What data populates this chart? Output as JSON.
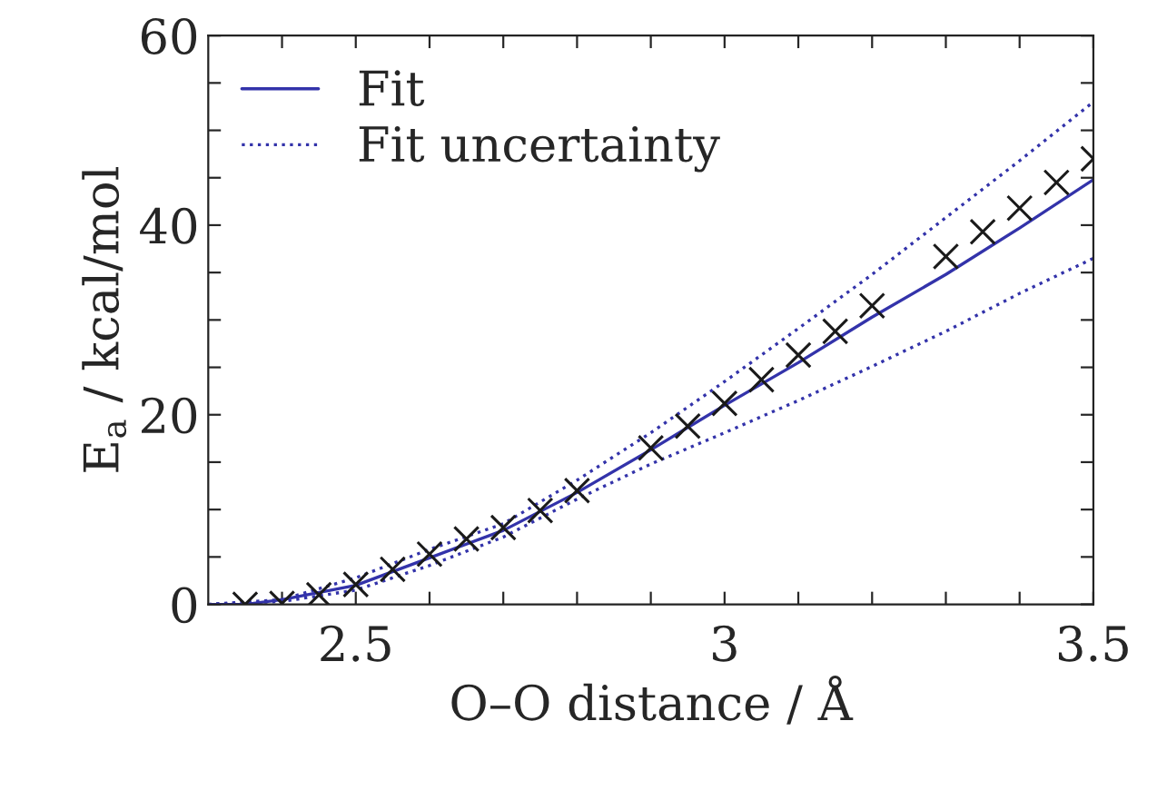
{
  "chart_data": {
    "type": "scatter",
    "xlabel": "O–O distance / Å",
    "ylabel": "E$_{a}$ / kcal/mol",
    "xlim": [
      2.3,
      3.5
    ],
    "ylim": [
      0,
      60
    ],
    "xticks": [
      {
        "value": 2.4,
        "label": null
      },
      {
        "value": 2.5,
        "label": "2.5"
      },
      {
        "value": 2.6,
        "label": null
      },
      {
        "value": 2.7,
        "label": null
      },
      {
        "value": 2.8,
        "label": null
      },
      {
        "value": 2.9,
        "label": null
      },
      {
        "value": 3,
        "label": "3"
      },
      {
        "value": 3.1,
        "label": null
      },
      {
        "value": 3.2,
        "label": null
      },
      {
        "value": 3.3,
        "label": null
      },
      {
        "value": 3.4,
        "label": null
      },
      {
        "value": 3.5,
        "label": "3.5"
      }
    ],
    "yticks": [
      0,
      {
        "value": 5,
        "label": null
      },
      {
        "value": 10,
        "label": null
      },
      {
        "value": 15,
        "label": null
      },
      20,
      {
        "value": 25,
        "label": null
      },
      {
        "value": 30,
        "label": null
      },
      {
        "value": 35,
        "label": null
      },
      40,
      {
        "value": 45,
        "label": null
      },
      {
        "value": 50,
        "label": null
      },
      {
        "value": 55,
        "label": null
      },
      60
    ],
    "grid": false,
    "legend": "top left",
    "series": [
      {
        "type": "line",
        "name": "Fit",
        "color": "#3333aa",
        "line_style": "solid",
        "marker": "none",
        "x": [
          2.3,
          2.35,
          2.4,
          2.5,
          2.6,
          2.7,
          2.8,
          2.9,
          3.0,
          3.1,
          3.2,
          3.3,
          3.4,
          3.5
        ],
        "values": [
          0,
          0,
          0.5,
          2.0,
          4.9,
          7.8,
          11.8,
          16.3,
          21.0,
          25.5,
          30.3,
          34.8,
          39.7,
          44.8
        ]
      },
      {
        "type": "line",
        "name": "Fit uncertainty",
        "color": "#3333aa",
        "line_style": "dotted",
        "marker": "none",
        "x": [
          2.3,
          2.4,
          2.5,
          2.6,
          2.7,
          2.8,
          2.9,
          3.0,
          3.1,
          3.2,
          3.3,
          3.4,
          3.5
        ],
        "values": [
          0,
          0.5,
          2.8,
          5.8,
          8.5,
          13.1,
          18.1,
          23.5,
          29.1,
          34.8,
          40.8,
          46.8,
          53.0
        ]
      },
      {
        "type": "line",
        "color": "#3333aa",
        "line_style": "dotted",
        "marker": "none",
        "x": [
          2.3,
          2.4,
          2.5,
          2.6,
          2.7,
          2.8,
          2.9,
          3.0,
          3.1,
          3.2,
          3.3,
          3.4,
          3.5
        ],
        "values": [
          0,
          0.3,
          1.5,
          4.1,
          7.1,
          11.1,
          14.8,
          18.1,
          21.5,
          25.1,
          28.8,
          32.8,
          36.5
        ]
      },
      {
        "color": "#1a1a1a",
        "marker": "cross",
        "x": [
          2.35,
          2.4,
          2.45,
          2.5,
          2.55,
          2.6,
          2.65,
          2.7,
          2.75,
          2.8,
          2.9,
          2.95,
          3.0,
          3.05,
          3.1,
          3.15,
          3.2,
          3.3,
          3.35,
          3.4,
          3.45,
          3.5
        ],
        "values": [
          0,
          0.1,
          1.0,
          2.1,
          3.7,
          5.3,
          6.9,
          8.1,
          9.9,
          12.0,
          16.5,
          18.8,
          21.2,
          23.7,
          26.3,
          28.8,
          31.5,
          36.7,
          39.3,
          41.8,
          44.5,
          47.0
        ]
      }
    ]
  }
}
